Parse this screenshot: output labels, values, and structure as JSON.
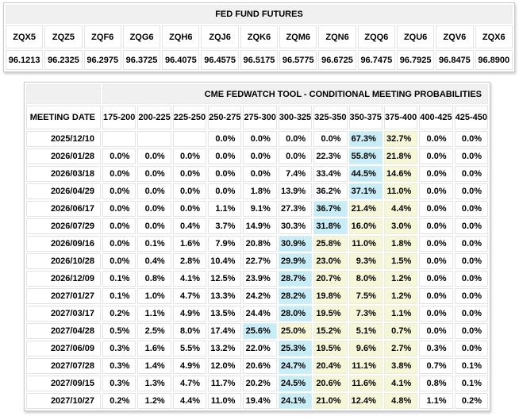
{
  "futures_table": {
    "title": "FED FUND FUTURES",
    "contracts": [
      "ZQX5",
      "ZQZ5",
      "ZQF6",
      "ZQG6",
      "ZQH6",
      "ZQJ6",
      "ZQK6",
      "ZQM6",
      "ZQN6",
      "ZQQ6",
      "ZQU6",
      "ZQV6",
      "ZQX6"
    ],
    "prices": [
      "96.1213",
      "96.2325",
      "96.2975",
      "96.3725",
      "96.4075",
      "96.4575",
      "96.5175",
      "96.5775",
      "96.6725",
      "96.7475",
      "96.7925",
      "96.8475",
      "96.8900"
    ]
  },
  "fedwatch_table": {
    "title": "CME FEDWATCH TOOL - CONDITIONAL MEETING PROBABILITIES",
    "meeting_date_header": "MEETING DATE",
    "rate_columns": [
      "175-200",
      "200-225",
      "225-250",
      "250-275",
      "275-300",
      "300-325",
      "325-350",
      "350-375",
      "375-400",
      "400-425",
      "425-450"
    ],
    "highlight_colors": {
      "blue": "#c9edf6",
      "yellow": "#f6f6d8"
    },
    "rows": [
      {
        "date": "2025/12/10",
        "values": [
          "",
          "",
          "",
          "0.0%",
          "0.0%",
          "0.0%",
          "0.0%",
          "67.3%",
          "32.7%",
          "0.0%",
          "0.0%"
        ],
        "blue": 7,
        "yellow": [
          8
        ]
      },
      {
        "date": "2026/01/28",
        "values": [
          "0.0%",
          "0.0%",
          "0.0%",
          "0.0%",
          "0.0%",
          "0.0%",
          "22.3%",
          "55.8%",
          "21.8%",
          "0.0%",
          "0.0%"
        ],
        "blue": 7,
        "yellow": [
          8
        ]
      },
      {
        "date": "2026/03/18",
        "values": [
          "0.0%",
          "0.0%",
          "0.0%",
          "0.0%",
          "0.0%",
          "7.4%",
          "33.4%",
          "44.5%",
          "14.6%",
          "0.0%",
          "0.0%"
        ],
        "blue": 7,
        "yellow": [
          8
        ]
      },
      {
        "date": "2026/04/29",
        "values": [
          "0.0%",
          "0.0%",
          "0.0%",
          "0.0%",
          "1.8%",
          "13.9%",
          "36.2%",
          "37.1%",
          "11.0%",
          "0.0%",
          "0.0%"
        ],
        "blue": 7,
        "yellow": [
          8
        ]
      },
      {
        "date": "2026/06/17",
        "values": [
          "0.0%",
          "0.0%",
          "0.0%",
          "1.1%",
          "9.1%",
          "27.3%",
          "36.7%",
          "21.4%",
          "4.4%",
          "0.0%",
          "0.0%"
        ],
        "blue": 6,
        "yellow": [
          7,
          8
        ]
      },
      {
        "date": "2026/07/29",
        "values": [
          "0.0%",
          "0.0%",
          "0.4%",
          "3.7%",
          "14.9%",
          "30.3%",
          "31.8%",
          "16.0%",
          "3.0%",
          "0.0%",
          "0.0%"
        ],
        "blue": 6,
        "yellow": [
          7,
          8
        ]
      },
      {
        "date": "2026/09/16",
        "values": [
          "0.0%",
          "0.1%",
          "1.6%",
          "7.9%",
          "20.8%",
          "30.9%",
          "25.8%",
          "11.0%",
          "1.8%",
          "0.0%",
          "0.0%"
        ],
        "blue": 5,
        "yellow": [
          6,
          7,
          8
        ]
      },
      {
        "date": "2026/10/28",
        "values": [
          "0.0%",
          "0.4%",
          "2.8%",
          "10.4%",
          "22.7%",
          "29.9%",
          "23.0%",
          "9.3%",
          "1.5%",
          "0.0%",
          "0.0%"
        ],
        "blue": 5,
        "yellow": [
          6,
          7,
          8
        ]
      },
      {
        "date": "2026/12/09",
        "values": [
          "0.1%",
          "0.8%",
          "4.1%",
          "12.5%",
          "23.9%",
          "28.7%",
          "20.7%",
          "8.0%",
          "1.2%",
          "0.0%",
          "0.0%"
        ],
        "blue": 5,
        "yellow": [
          6,
          7,
          8
        ]
      },
      {
        "date": "2027/01/27",
        "values": [
          "0.1%",
          "1.0%",
          "4.7%",
          "13.3%",
          "24.2%",
          "28.2%",
          "19.8%",
          "7.5%",
          "1.2%",
          "0.0%",
          "0.0%"
        ],
        "blue": 5,
        "yellow": [
          6,
          7,
          8
        ]
      },
      {
        "date": "2027/03/17",
        "values": [
          "0.2%",
          "1.1%",
          "4.9%",
          "13.5%",
          "24.4%",
          "28.0%",
          "19.5%",
          "7.3%",
          "1.1%",
          "0.0%",
          "0.0%"
        ],
        "blue": 5,
        "yellow": [
          6,
          7,
          8
        ]
      },
      {
        "date": "2027/04/28",
        "values": [
          "0.5%",
          "2.5%",
          "8.0%",
          "17.4%",
          "25.6%",
          "25.0%",
          "15.2%",
          "5.1%",
          "0.7%",
          "0.0%",
          "0.0%"
        ],
        "blue": 4,
        "yellow": [
          5,
          6,
          7,
          8
        ]
      },
      {
        "date": "2027/06/09",
        "values": [
          "0.3%",
          "1.6%",
          "5.5%",
          "13.2%",
          "22.0%",
          "25.3%",
          "19.5%",
          "9.6%",
          "2.7%",
          "0.3%",
          "0.0%"
        ],
        "blue": 5,
        "yellow": [
          6,
          7,
          8
        ]
      },
      {
        "date": "2027/07/28",
        "values": [
          "0.3%",
          "1.4%",
          "4.9%",
          "12.0%",
          "20.6%",
          "24.7%",
          "20.4%",
          "11.1%",
          "3.8%",
          "0.7%",
          "0.1%"
        ],
        "blue": 5,
        "yellow": [
          6,
          7,
          8
        ]
      },
      {
        "date": "2027/09/15",
        "values": [
          "0.3%",
          "1.3%",
          "4.7%",
          "11.7%",
          "20.2%",
          "24.5%",
          "20.6%",
          "11.6%",
          "4.1%",
          "0.8%",
          "0.1%"
        ],
        "blue": 5,
        "yellow": [
          6,
          7,
          8
        ]
      },
      {
        "date": "2027/10/27",
        "values": [
          "0.2%",
          "1.2%",
          "4.4%",
          "11.0%",
          "19.4%",
          "24.1%",
          "21.0%",
          "12.4%",
          "4.8%",
          "1.1%",
          "0.2%"
        ],
        "blue": 5,
        "yellow": [
          6,
          7,
          8
        ]
      }
    ]
  }
}
